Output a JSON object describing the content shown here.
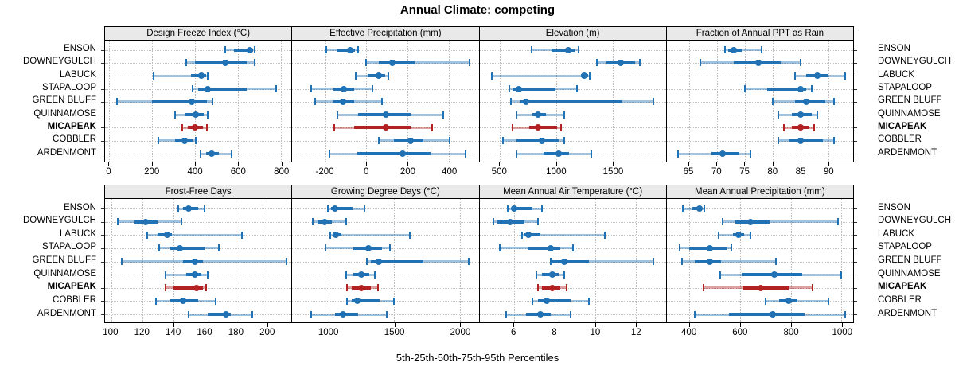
{
  "title": "Annual Climate: competing",
  "caption": "5th-25th-50th-75th-95th Percentiles",
  "colors": {
    "series": "#2171b5",
    "highlight": "#b22222",
    "strip_bg": "#e9e9e9",
    "grid": "#bdbdbd",
    "panel_border": "#000000"
  },
  "chart_data": {
    "type": "dotplot-percentiles",
    "percentile_labels": [
      "5th",
      "25th",
      "50th",
      "75th",
      "95th"
    ],
    "legend": "5th-25th-50th-75th-95th Percentiles",
    "sites": [
      "ENSON",
      "DOWNEYGULCH",
      "LABUCK",
      "STAPALOOP",
      "GREEN BLUFF",
      "QUINNAMOSE",
      "MICAPEAK",
      "COBBLER",
      "ARDENMONT"
    ],
    "highlight_site": "MICAPEAK",
    "panels": [
      {
        "label": "Design Freeze Index (°C)",
        "row": 0,
        "ticks": [
          0,
          200,
          400,
          600,
          800
        ],
        "xlim": [
          -20,
          850
        ],
        "series": [
          [
            540,
            580,
            655,
            670,
            680
          ],
          [
            360,
            400,
            540,
            640,
            680
          ],
          [
            205,
            380,
            430,
            450,
            460
          ],
          [
            390,
            415,
            460,
            640,
            780
          ],
          [
            35,
            200,
            385,
            455,
            480
          ],
          [
            305,
            350,
            405,
            440,
            460
          ],
          [
            340,
            365,
            400,
            435,
            455
          ],
          [
            230,
            305,
            350,
            390,
            405
          ],
          [
            425,
            450,
            478,
            510,
            570
          ]
        ]
      },
      {
        "label": "Effective Precipitation (mm)",
        "row": 0,
        "ticks": [
          -200,
          0,
          200,
          400
        ],
        "xlim": [
          -360,
          545
        ],
        "series": [
          [
            -195,
            -140,
            -80,
            -55,
            -40
          ],
          [
            0,
            60,
            125,
            235,
            500
          ],
          [
            -50,
            5,
            60,
            90,
            107
          ],
          [
            -268,
            -160,
            -110,
            -60,
            30
          ],
          [
            -247,
            -160,
            -115,
            -60,
            75
          ],
          [
            -140,
            -40,
            95,
            215,
            375
          ],
          [
            -157,
            -60,
            95,
            215,
            320
          ],
          [
            60,
            133,
            215,
            275,
            403
          ],
          [
            -180,
            -45,
            175,
            310,
            480
          ]
        ]
      },
      {
        "label": "Elevation (m)",
        "row": 0,
        "ticks": [
          500,
          1000,
          1500
        ],
        "xlim": [
          320,
          1970
        ],
        "series": [
          [
            780,
            960,
            1105,
            1165,
            1200
          ],
          [
            1360,
            1440,
            1570,
            1700,
            1740
          ],
          [
            430,
            1220,
            1245,
            1285,
            1295
          ],
          [
            585,
            615,
            672,
            996,
            1180
          ],
          [
            600,
            685,
            735,
            1575,
            1860
          ],
          [
            650,
            790,
            835,
            910,
            1070
          ],
          [
            610,
            760,
            835,
            1010,
            1045
          ],
          [
            530,
            645,
            870,
            1020,
            1070
          ],
          [
            650,
            885,
            1020,
            1115,
            1310
          ]
        ]
      },
      {
        "label": "Fraction of Annual PPT as Rain",
        "row": 0,
        "ticks": [
          65,
          70,
          75,
          80,
          85,
          90
        ],
        "xlim": [
          61,
          94.5
        ],
        "series": [
          [
            71.5,
            72,
            73,
            74.5,
            78
          ],
          [
            67,
            73,
            77.5,
            81.5,
            85
          ],
          [
            84,
            86,
            88,
            90,
            93
          ],
          [
            75,
            79,
            85,
            86,
            87
          ],
          [
            80,
            84,
            86,
            89.5,
            91
          ],
          [
            81,
            83.5,
            85,
            87,
            88
          ],
          [
            82,
            83.5,
            85,
            86.5,
            87.5
          ],
          [
            81,
            83,
            85,
            89,
            91
          ],
          [
            63,
            69,
            71,
            74,
            76
          ]
        ]
      },
      {
        "label": "Frost-Free Days",
        "row": 1,
        "ticks": [
          100,
          120,
          140,
          160,
          180,
          200
        ],
        "xlim": [
          96,
          216
        ],
        "series": [
          [
            143,
            146,
            150,
            156,
            160
          ],
          [
            104,
            115,
            122,
            130,
            145
          ],
          [
            123,
            130,
            136,
            139,
            184
          ],
          [
            131,
            138,
            144,
            160,
            169
          ],
          [
            107,
            146,
            154,
            159,
            213
          ],
          [
            135,
            148,
            154,
            158,
            162
          ],
          [
            135,
            140,
            155,
            159,
            161
          ],
          [
            129,
            138,
            146,
            156,
            167
          ],
          [
            150,
            162,
            174,
            177,
            191
          ]
        ]
      },
      {
        "label": "Growing Degree Days (°C)",
        "row": 1,
        "ticks": [
          1000,
          1500,
          2000
        ],
        "xlim": [
          720,
          2145
        ],
        "series": [
          [
            995,
            1015,
            1050,
            1180,
            1275
          ],
          [
            875,
            915,
            965,
            1020,
            1135
          ],
          [
            1010,
            1030,
            1055,
            1095,
            1620
          ],
          [
            975,
            1185,
            1305,
            1405,
            1465
          ],
          [
            1290,
            1320,
            1380,
            1725,
            2070
          ],
          [
            1130,
            1185,
            1245,
            1310,
            1350
          ],
          [
            1140,
            1175,
            1245,
            1320,
            1375
          ],
          [
            1140,
            1175,
            1220,
            1390,
            1495
          ],
          [
            865,
            1050,
            1110,
            1225,
            1440
          ]
        ]
      },
      {
        "label": "Mean Annual Air Temperature (°C)",
        "row": 1,
        "ticks": [
          6,
          8,
          10,
          12
        ],
        "xlim": [
          4.3,
          13.5
        ],
        "series": [
          [
            5.7,
            5.9,
            6.0,
            6.9,
            7.4
          ],
          [
            5.0,
            5.2,
            5.8,
            6.5,
            7.2
          ],
          [
            6.4,
            6.5,
            6.7,
            7.3,
            10.5
          ],
          [
            5.3,
            6.7,
            7.8,
            8.3,
            8.9
          ],
          [
            7.8,
            7.9,
            8.5,
            9.7,
            12.9
          ],
          [
            7.1,
            7.4,
            7.9,
            8.2,
            8.5
          ],
          [
            7.2,
            7.4,
            7.9,
            8.3,
            8.6
          ],
          [
            6.9,
            7.2,
            7.6,
            8.8,
            9.7
          ],
          [
            5.6,
            6.6,
            7.3,
            7.8,
            8.8
          ]
        ]
      },
      {
        "label": "Mean Annual Precipitation (mm)",
        "row": 1,
        "ticks": [
          400,
          600,
          800,
          1000
        ],
        "xlim": [
          310,
          1046
        ],
        "series": [
          [
            375,
            410,
            440,
            450,
            460
          ],
          [
            530,
            580,
            640,
            715,
            985
          ],
          [
            515,
            570,
            595,
            615,
            640
          ],
          [
            360,
            400,
            480,
            550,
            565
          ],
          [
            370,
            420,
            480,
            525,
            740
          ],
          [
            520,
            605,
            735,
            845,
            1000
          ],
          [
            455,
            610,
            680,
            790,
            885
          ],
          [
            700,
            755,
            790,
            825,
            950
          ],
          [
            420,
            555,
            730,
            855,
            1015
          ]
        ]
      }
    ]
  }
}
